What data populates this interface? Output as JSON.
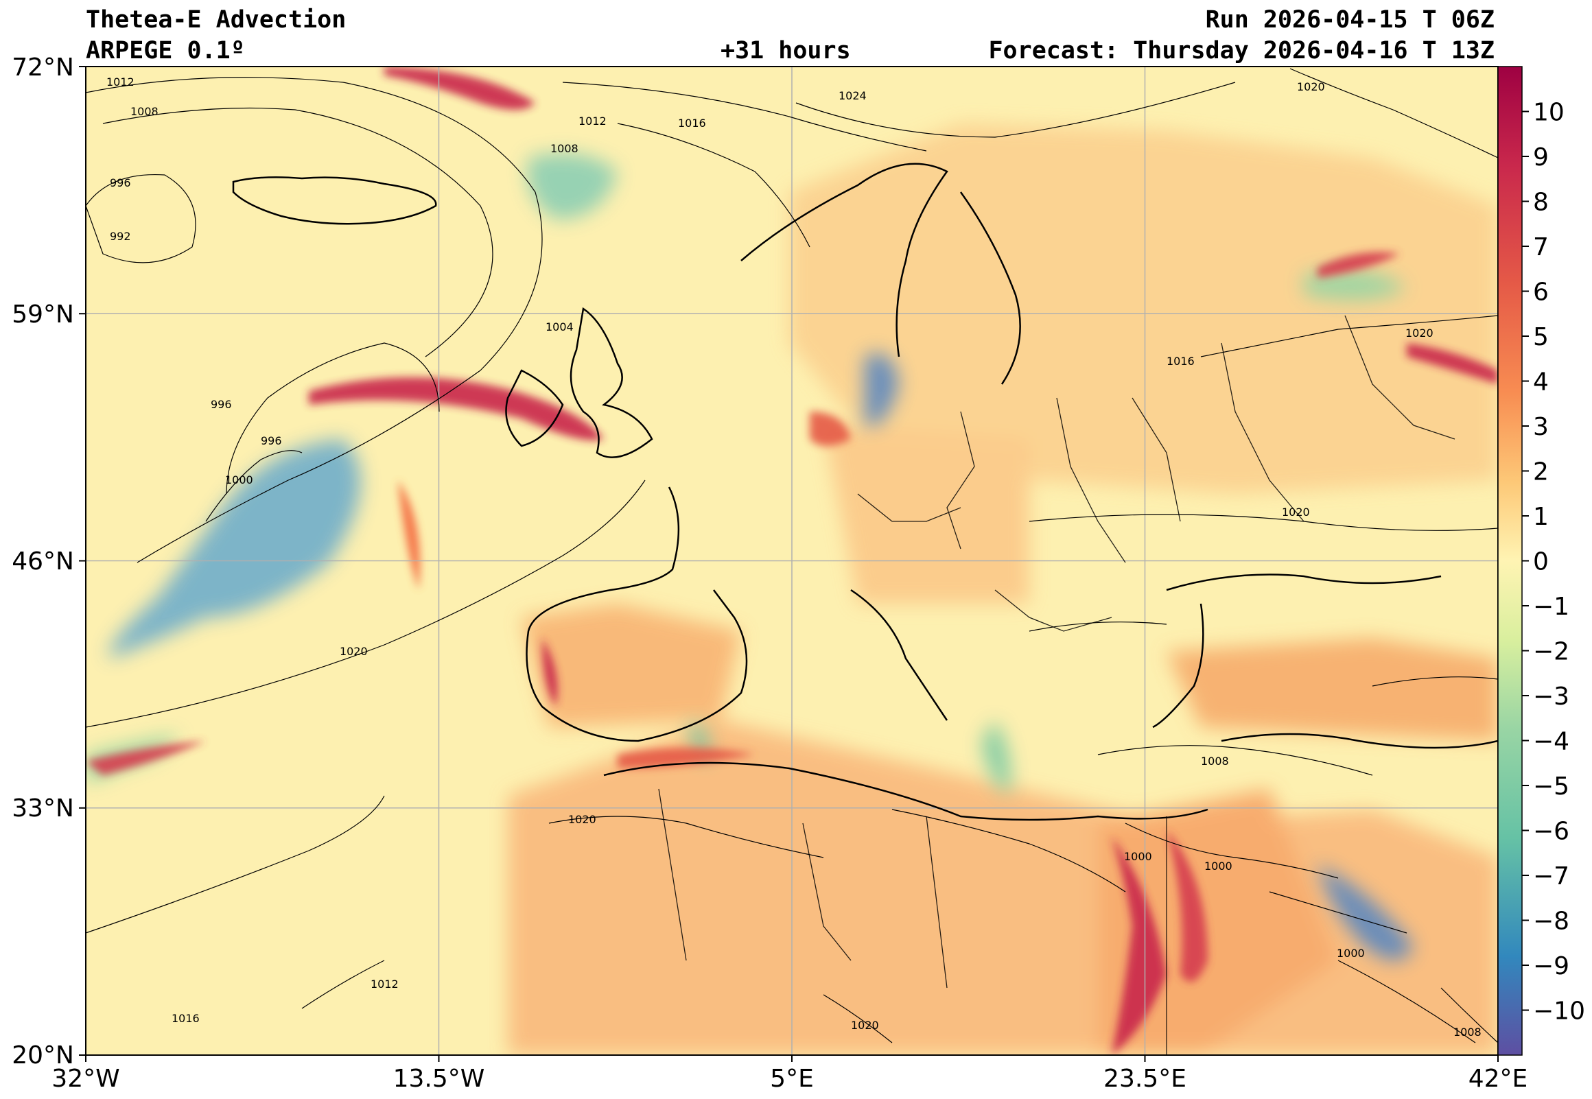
{
  "header": {
    "title": "Thetea-E Advection",
    "model": "ARPEGE 0.1º",
    "lead_time": "+31 hours",
    "run": "Run 2026-04-15 T 06Z",
    "forecast": "Forecast: Thursday 2026-04-16 T 13Z"
  },
  "map": {
    "lon_labels": [
      "32°W",
      "13.5°W",
      "5°E",
      "23.5°E",
      "42°E"
    ],
    "lat_labels": [
      "72°N",
      "59°N",
      "46°N",
      "33°N",
      "20°N"
    ],
    "isobar_labels": [
      "1012",
      "1008",
      "996",
      "992",
      "1012",
      "1008",
      "1016",
      "1024",
      "1020",
      "1004",
      "996",
      "996",
      "1000",
      "1020",
      "1020",
      "1016",
      "1020",
      "1020",
      "1008",
      "1000",
      "1000",
      "1000",
      "1016",
      "1012",
      "1020",
      "1008"
    ]
  },
  "colorbar": {
    "ticks": [
      "10",
      "9",
      "8",
      "7",
      "6",
      "5",
      "4",
      "3",
      "2",
      "1",
      "0",
      "−1",
      "−2",
      "−3",
      "−4",
      "−5",
      "−6",
      "−7",
      "−8",
      "−9",
      "−10"
    ],
    "colors": [
      "#9e0142",
      "#b5164a",
      "#c9284c",
      "#d53e4f",
      "#e55a47",
      "#f46d43",
      "#f88d52",
      "#fdae61",
      "#fdc877",
      "#fee08b",
      "#fff4b3",
      "#eef8b0",
      "#d9ef9e",
      "#bde5a0",
      "#99d5a4",
      "#7ccba5",
      "#66c2a5",
      "#4fa3b0",
      "#3288bd",
      "#4a6db4",
      "#5e4fa2"
    ]
  }
}
